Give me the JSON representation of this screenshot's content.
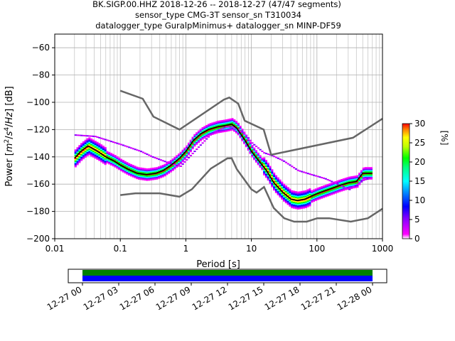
{
  "chart_data": [
    {
      "type": "heatmap",
      "title_lines": [
        "BK.SIGP.00.HHZ   2018-12-26 -- 2018-12-27  (47/47 segments)",
        "sensor_type CMG-3T sensor_sn T310034",
        "datalogger_type GuralpMinimus+ datalogger_sn MINP-DF59"
      ],
      "xlabel": "Period [s]",
      "ylabel": "Power [m²/s⁴/Hz] [dB]",
      "x_scale": "log",
      "xlim": [
        0.01,
        1000
      ],
      "ylim": [
        -200,
        -50
      ],
      "x_ticks": [
        {
          "value": 0.01,
          "label": "0.01"
        },
        {
          "value": 0.1,
          "label": "0.1"
        },
        {
          "value": 1,
          "label": "1"
        },
        {
          "value": 10,
          "label": "10"
        },
        {
          "value": 100,
          "label": "100"
        },
        {
          "value": 1000,
          "label": "1000"
        }
      ],
      "y_ticks": [
        {
          "value": -60,
          "label": "−60"
        },
        {
          "value": -80,
          "label": "−80"
        },
        {
          "value": -100,
          "label": "−100"
        },
        {
          "value": -120,
          "label": "−120"
        },
        {
          "value": -140,
          "label": "−140"
        },
        {
          "value": -160,
          "label": "−160"
        },
        {
          "value": -180,
          "label": "−180"
        },
        {
          "value": -200,
          "label": "−200"
        }
      ],
      "grid": true,
      "colorbar": {
        "label": "[%]",
        "range": [
          0,
          30
        ],
        "ticks": [
          {
            "value": 0,
            "label": "0"
          },
          {
            "value": 5,
            "label": "5"
          },
          {
            "value": 10,
            "label": "10"
          },
          {
            "value": 15,
            "label": "15"
          },
          {
            "value": 20,
            "label": "20"
          },
          {
            "value": 25,
            "label": "25"
          },
          {
            "value": 30,
            "label": "30"
          }
        ],
        "colors": [
          "#ffffff",
          "#ff00ff",
          "#0000ff",
          "#00ffff",
          "#00ff00",
          "#ffff00",
          "#ff0000"
        ]
      },
      "noise_models": [
        {
          "period": [
            0.1,
            0.22,
            0.32,
            0.8,
            3.8,
            4.6,
            6.3,
            7.9,
            15.4,
            20,
            354.8,
            1000
          ],
          "power": [
            -91.5,
            -97.4,
            -110.5,
            -120,
            -98,
            -96.5,
            -101,
            -113.5,
            -120,
            -138.5,
            -126,
            -112
          ]
        },
        {
          "period": [
            0.1,
            0.17,
            0.4,
            0.8,
            1.24,
            2.4,
            4.3,
            5,
            6,
            10,
            12,
            15.6,
            21.9,
            31.6,
            45,
            70,
            101,
            154,
            328,
            600,
            1000
          ],
          "power": [
            -168,
            -166.7,
            -166.7,
            -169.2,
            -163.7,
            -148.6,
            -141.1,
            -141,
            -149,
            -163.8,
            -166.2,
            -162.1,
            -177.5,
            -185,
            -187.5,
            -187.5,
            -185,
            -185,
            -187.5,
            -185,
            -178
          ]
        }
      ],
      "median_curve": {
        "period": [
          0.02,
          0.025,
          0.032,
          0.045,
          0.06,
          0.08,
          0.1,
          0.13,
          0.18,
          0.25,
          0.35,
          0.45,
          0.6,
          0.8,
          1.0,
          1.3,
          1.7,
          2.2,
          3,
          4,
          5,
          6,
          8,
          10,
          13,
          17,
          22,
          30,
          40,
          50,
          65,
          80,
          100,
          130,
          170,
          220,
          300,
          400,
          500,
          700
        ],
        "power": [
          -141,
          -136,
          -132,
          -136,
          -140,
          -143,
          -146,
          -149,
          -152,
          -153,
          -152,
          -150,
          -146,
          -141,
          -136,
          -128,
          -123,
          -120,
          -118,
          -117,
          -116,
          -119,
          -128,
          -136,
          -143,
          -150,
          -159,
          -166,
          -171,
          -172,
          -171,
          -169,
          -167,
          -165,
          -163,
          -161,
          -159,
          -158,
          -152,
          -152
        ]
      },
      "mode_curve": {
        "period": [
          0.02,
          0.04,
          0.1,
          0.2,
          0.3,
          0.5,
          0.8,
          1.5,
          2.5,
          4,
          5,
          6,
          8,
          10,
          15,
          20,
          30,
          50,
          80,
          130,
          200,
          300,
          500,
          700
        ],
        "power": [
          -124,
          -125,
          -131,
          -136,
          -140,
          -144,
          -147,
          -133,
          -122,
          -118,
          -118,
          -120,
          -124,
          -130,
          -137,
          -139,
          -143,
          -150,
          -153,
          -156,
          -160,
          -164,
          -157,
          -155
        ]
      },
      "timeline": {
        "ticks": [
          "12-27 00",
          "12-27 03",
          "12-27 06",
          "12-27 09",
          "12-27 12",
          "12-27 15",
          "12-27 18",
          "12-27 21",
          "12-28 00"
        ],
        "bars": [
          {
            "from_hour": 0,
            "to_hour": 24,
            "color": "#008000"
          },
          {
            "from_hour": 0,
            "to_hour": 24,
            "color": "#0000ff"
          }
        ]
      }
    }
  ]
}
